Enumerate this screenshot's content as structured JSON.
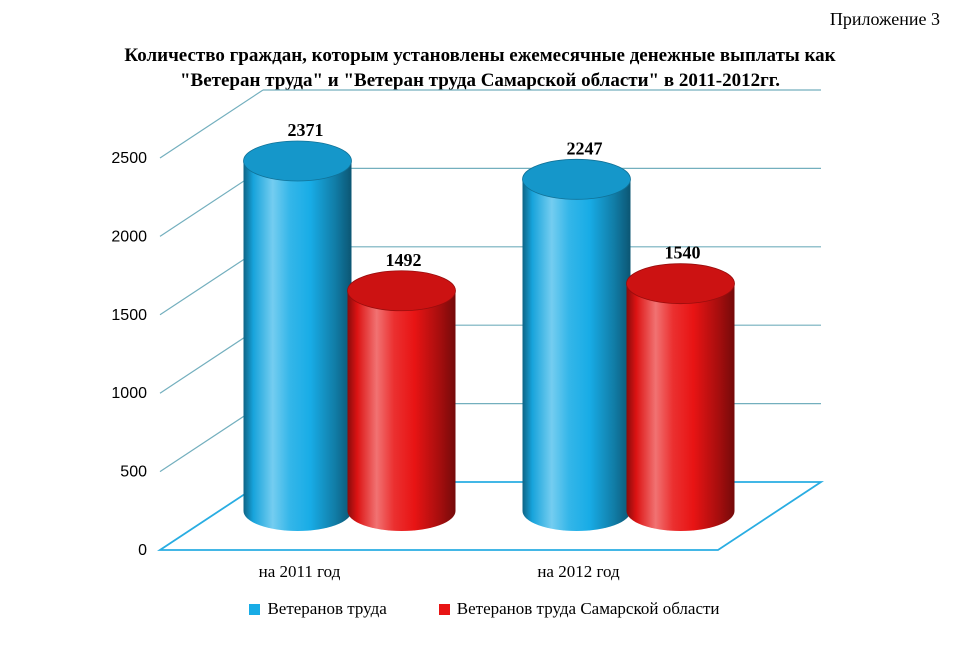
{
  "page": {
    "annotation": "Приложение 3",
    "background": "#FFFFFF"
  },
  "chart_data": {
    "type": "bar",
    "subtype": "3d-cylinder",
    "title": "Количество граждан,  которым установлены ежемесячные денежные выплаты как\n\"Ветеран труда\" и \"Ветеран труда Самарской области\" в 2011-2012гг.",
    "categories": [
      "на 2011 год",
      "на 2012 год"
    ],
    "series": [
      {
        "name": "Ветеранов труда",
        "color": "#18ACE6",
        "values": [
          2371,
          2247
        ]
      },
      {
        "name": "Ветеранов труда Самарской области",
        "color": "#E81414",
        "values": [
          1492,
          1540
        ]
      }
    ],
    "ylim": [
      0,
      2500
    ],
    "yticks": [
      0,
      500,
      1000,
      1500,
      2000,
      2500
    ],
    "grid": true,
    "legend_position": "bottom",
    "colors": {
      "gridline": "#73AFBE",
      "floor_line": "#29ADE2",
      "text": "#000000"
    }
  }
}
